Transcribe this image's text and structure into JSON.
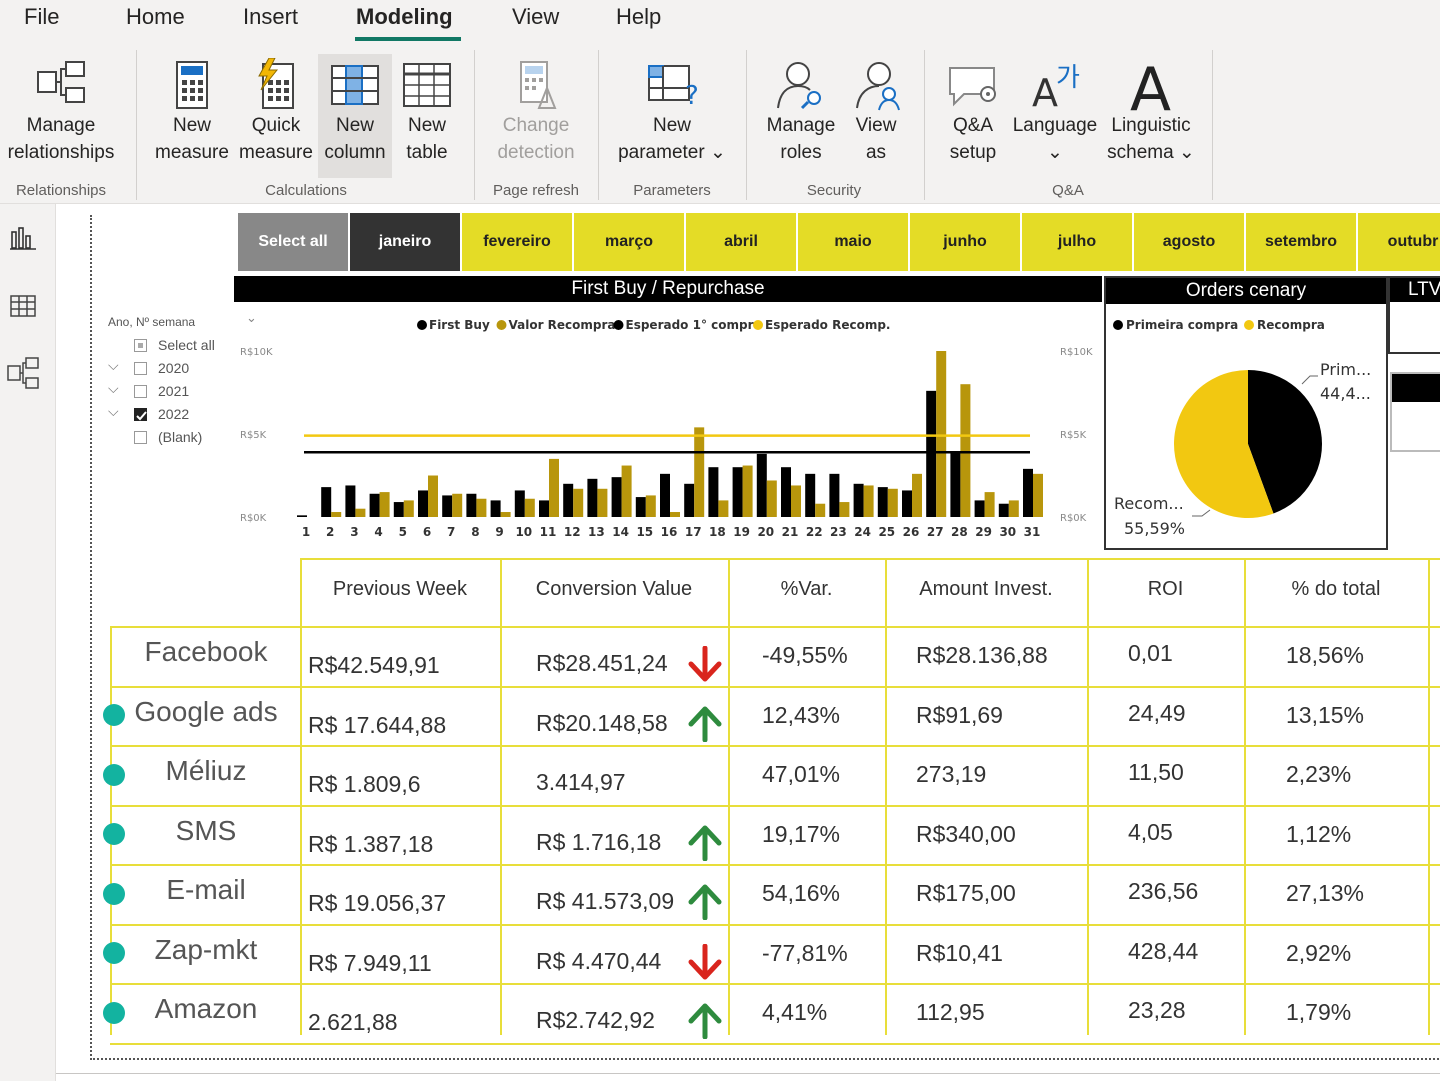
{
  "menu": {
    "items": [
      "File",
      "Home",
      "Insert",
      "Modeling",
      "View",
      "Help"
    ],
    "active": "Modeling"
  },
  "ribbon": {
    "manage_relationships": [
      "Manage",
      "relationships"
    ],
    "new_measure": [
      "New",
      "measure"
    ],
    "quick_measure": [
      "Quick",
      "measure"
    ],
    "new_column": [
      "New",
      "column"
    ],
    "new_table": [
      "New",
      "table"
    ],
    "change_detection": [
      "Change",
      "detection"
    ],
    "new_parameter": [
      "New",
      "parameter ⌄"
    ],
    "manage_roles": [
      "Manage",
      "roles"
    ],
    "view_as": [
      "View",
      "as"
    ],
    "qa_setup": [
      "Q&A",
      "setup"
    ],
    "language": [
      "Language",
      "⌄"
    ],
    "linguistic_schema": [
      "Linguistic",
      "schema ⌄"
    ],
    "groups": {
      "relationships": "Relationships",
      "calculations": "Calculations",
      "page_refresh": "Page refresh",
      "parameters": "Parameters",
      "security": "Security",
      "qa": "Q&A"
    }
  },
  "months": [
    "Select all",
    "janeiro",
    "fevereiro",
    "março",
    "abril",
    "maio",
    "junho",
    "julho",
    "agosto",
    "setembro",
    "outubr"
  ],
  "slicer": {
    "title": "Ano, Nº semana",
    "items": [
      {
        "label": "Select all",
        "checked": "partial"
      },
      {
        "label": "2020",
        "checked": "no"
      },
      {
        "label": "2021",
        "checked": "no"
      },
      {
        "label": "2022",
        "checked": "yes"
      },
      {
        "label": "(Blank)",
        "checked": "no"
      }
    ]
  },
  "chart_titles": {
    "first_buy": "First Buy / Repurchase",
    "orders": "Orders cenary",
    "ltv": "LTV"
  },
  "chart_data": [
    {
      "type": "bar",
      "legend": [
        "First Buy",
        "Valor Recompra",
        "Esperado 1° compr",
        "Esperado Recomp."
      ],
      "categories": [
        "1",
        "2",
        "3",
        "4",
        "5",
        "6",
        "7",
        "8",
        "9",
        "10",
        "11",
        "12",
        "13",
        "14",
        "15",
        "16",
        "17",
        "18",
        "19",
        "20",
        "21",
        "22",
        "23",
        "24",
        "25",
        "26",
        "27",
        "28",
        "29",
        "30",
        "31"
      ],
      "series": [
        {
          "name": "First Buy",
          "color": "#000000",
          "values": [
            0.1,
            1.8,
            1.9,
            1.4,
            0.9,
            1.6,
            1.3,
            1.4,
            1.0,
            1.6,
            1.0,
            2.0,
            2.3,
            2.4,
            1.2,
            2.6,
            2.0,
            3.0,
            3.0,
            3.8,
            3.0,
            2.6,
            2.6,
            2.0,
            1.8,
            1.6,
            7.6,
            3.9,
            1.0,
            0.8,
            2.9
          ]
        },
        {
          "name": "Valor Recompra",
          "color": "#b8960c",
          "values": [
            0,
            0.3,
            0.5,
            1.5,
            1.0,
            2.5,
            1.4,
            1.1,
            0.3,
            1.1,
            3.5,
            1.7,
            1.7,
            3.1,
            1.3,
            0.3,
            5.4,
            1.0,
            3.1,
            2.2,
            1.9,
            0.8,
            0.9,
            1.9,
            1.7,
            2.6,
            10.0,
            8.0,
            1.5,
            1.0,
            2.6
          ]
        }
      ],
      "ref_lines": [
        {
          "name": "Esperado 1° compr",
          "color": "#000000",
          "value": 3.9
        },
        {
          "name": "Esperado Recomp.",
          "color": "#f2c811",
          "value": 4.9
        }
      ],
      "y_ticks": [
        "R$0K",
        "R$5K",
        "R$10K"
      ],
      "ylim": [
        0,
        10
      ]
    },
    {
      "type": "pie",
      "legend": [
        "Primeira compra",
        "Recompra"
      ],
      "slices": [
        {
          "name": "Primeira compra",
          "value": 44.41,
          "color": "#000000",
          "label": "Prim...",
          "pct": "44,4..."
        },
        {
          "name": "Recompra",
          "value": 55.59,
          "color": "#f2c811",
          "label": "Recom...",
          "pct": "55,59%"
        }
      ]
    }
  ],
  "table": {
    "headers": [
      "Previous Week",
      "Conversion Value",
      "%Var.",
      "Amount Invest.",
      "ROI",
      "% do total"
    ],
    "rows": [
      {
        "name": "Facebook",
        "prev": "R$42.549,91",
        "conv": "R$28.451,24",
        "arrow": "down",
        "var": "-49,55%",
        "invest": "R$28.136,88",
        "roi": "0,01",
        "pct": "18,56%",
        "dot": false
      },
      {
        "name": "Google ads",
        "prev": "R$ 17.644,88",
        "conv": "R$20.148,58",
        "arrow": "up",
        "var": "12,43%",
        "invest": "R$91,69",
        "roi": "24,49",
        "pct": "13,15%",
        "dot": true
      },
      {
        "name": "Méliuz",
        "prev": "R$ 1.809,6",
        "conv": "3.414,97",
        "arrow": "none",
        "var": "47,01%",
        "invest": "273,19",
        "roi": "11,50",
        "pct": "2,23%",
        "dot": true
      },
      {
        "name": "SMS",
        "prev": "R$ 1.387,18",
        "conv": "R$ 1.716,18",
        "arrow": "up",
        "var": "19,17%",
        "invest": "R$340,00",
        "roi": "4,05",
        "pct": "1,12%",
        "dot": true
      },
      {
        "name": "E-mail",
        "prev": "R$ 19.056,37",
        "conv": "R$ 41.573,09",
        "arrow": "up",
        "var": "54,16%",
        "invest": "R$175,00",
        "roi": "236,56",
        "pct": "27,13%",
        "dot": true
      },
      {
        "name": "Zap-mkt",
        "prev": "R$ 7.949,11",
        "conv": "R$ 4.470,44",
        "arrow": "down",
        "var": "-77,81%",
        "invest": "R$10,41",
        "roi": "428,44",
        "pct": "2,92%",
        "dot": true
      },
      {
        "name": "Amazon",
        "prev": "2.621,88",
        "conv": "R$2.742,92",
        "arrow": "up",
        "var": "4,41%",
        "invest": "112,95",
        "roi": "23,28",
        "pct": "1,79%",
        "dot": true
      }
    ]
  },
  "icons": {
    "report": "report-view-icon",
    "data": "data-view-icon",
    "model": "model-view-icon"
  }
}
